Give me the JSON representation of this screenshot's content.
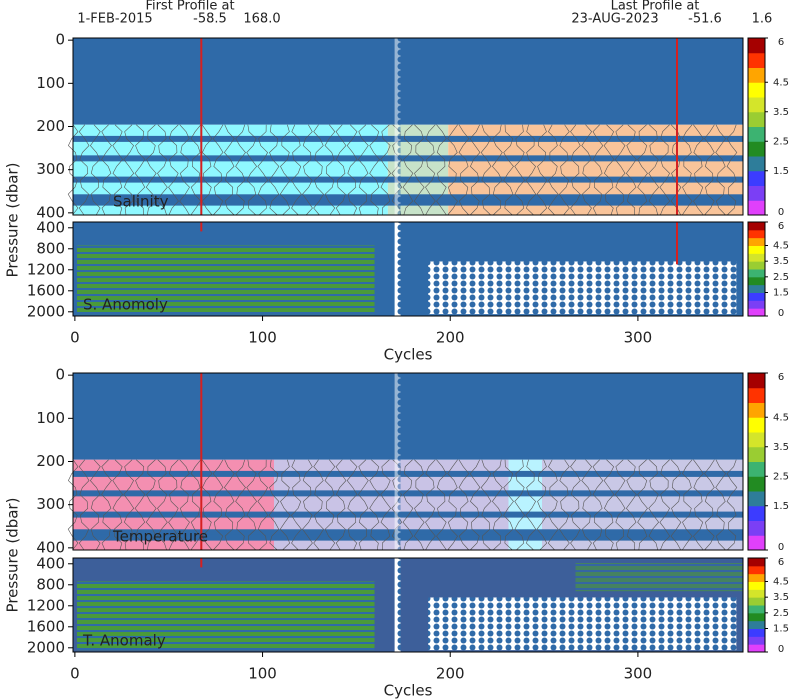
{
  "header": {
    "first_label": "First Profile at",
    "first_date": "1-FEB-2015",
    "first_lat": "-58.5",
    "first_lon": "168.0",
    "last_label": "Last Profile at",
    "last_date": "23-AUG-2023",
    "last_lat": "-51.6",
    "last_lon": "1.6"
  },
  "chart_data": [
    {
      "type": "heatmap",
      "title": "Salinity",
      "ylabel": "Pressure (dbar)",
      "xlim": [
        -1,
        356
      ],
      "ylim": [
        -5,
        405
      ],
      "yticks": [
        0,
        100,
        200,
        300,
        400
      ],
      "colorbar": {
        "lim": [
          0,
          6
        ],
        "ticks": [
          0,
          1.5,
          2.5,
          3.5,
          4.5,
          6
        ],
        "colors": [
          "#e040fb",
          "#7b3ff5",
          "#3c3cff",
          "#2e7d9a",
          "#228b22",
          "#3cb371",
          "#9acd32",
          "#d4e52a",
          "#ffff00",
          "#ffa500",
          "#ff3300",
          "#a50000"
        ]
      }
    },
    {
      "type": "heatmap",
      "title": "S. Anomoly",
      "xlabel": "Cycles",
      "xlim": [
        -1,
        356
      ],
      "xticks": [
        0,
        100,
        200,
        300
      ],
      "ylim": [
        290,
        2080
      ],
      "yticks": [
        400,
        800,
        1200,
        1600,
        2000
      ],
      "colorbar": {
        "lim": [
          0,
          6
        ],
        "ticks": [
          0,
          1.5,
          2.5,
          3.5,
          4.5,
          6
        ],
        "colors": [
          "#e040fb",
          "#7b3ff5",
          "#3c3cff",
          "#2e7d9a",
          "#228b22",
          "#3cb371",
          "#9acd32",
          "#d4e52a",
          "#ffff00",
          "#ffa500",
          "#ff3300",
          "#a50000"
        ]
      }
    },
    {
      "type": "heatmap",
      "title": "Temperature",
      "ylabel": "Pressure (dbar)",
      "xlim": [
        -1,
        356
      ],
      "ylim": [
        -5,
        405
      ],
      "yticks": [
        0,
        100,
        200,
        300,
        400
      ],
      "colorbar": {
        "lim": [
          0,
          6
        ],
        "ticks": [
          0,
          1.5,
          2.5,
          3.5,
          4.5,
          6
        ],
        "colors": [
          "#e040fb",
          "#7b3ff5",
          "#3c3cff",
          "#2e7d9a",
          "#228b22",
          "#3cb371",
          "#9acd32",
          "#d4e52a",
          "#ffff00",
          "#ffa500",
          "#ff3300",
          "#a50000"
        ]
      }
    },
    {
      "type": "heatmap",
      "title": "T. Anomaly",
      "xlabel": "Cycles",
      "xlim": [
        -1,
        356
      ],
      "xticks": [
        0,
        100,
        200,
        300
      ],
      "ylim": [
        290,
        2080
      ],
      "yticks": [
        400,
        800,
        1200,
        1600,
        2000
      ],
      "colorbar": {
        "lim": [
          0,
          6
        ],
        "ticks": [
          0,
          1.5,
          2.5,
          3.5,
          4.5,
          6
        ],
        "colors": [
          "#e040fb",
          "#7b3ff5",
          "#3c3cff",
          "#2e7d9a",
          "#228b22",
          "#3cb371",
          "#9acd32",
          "#d4e52a",
          "#ffff00",
          "#ffa500",
          "#ff3300",
          "#a50000"
        ]
      }
    }
  ]
}
